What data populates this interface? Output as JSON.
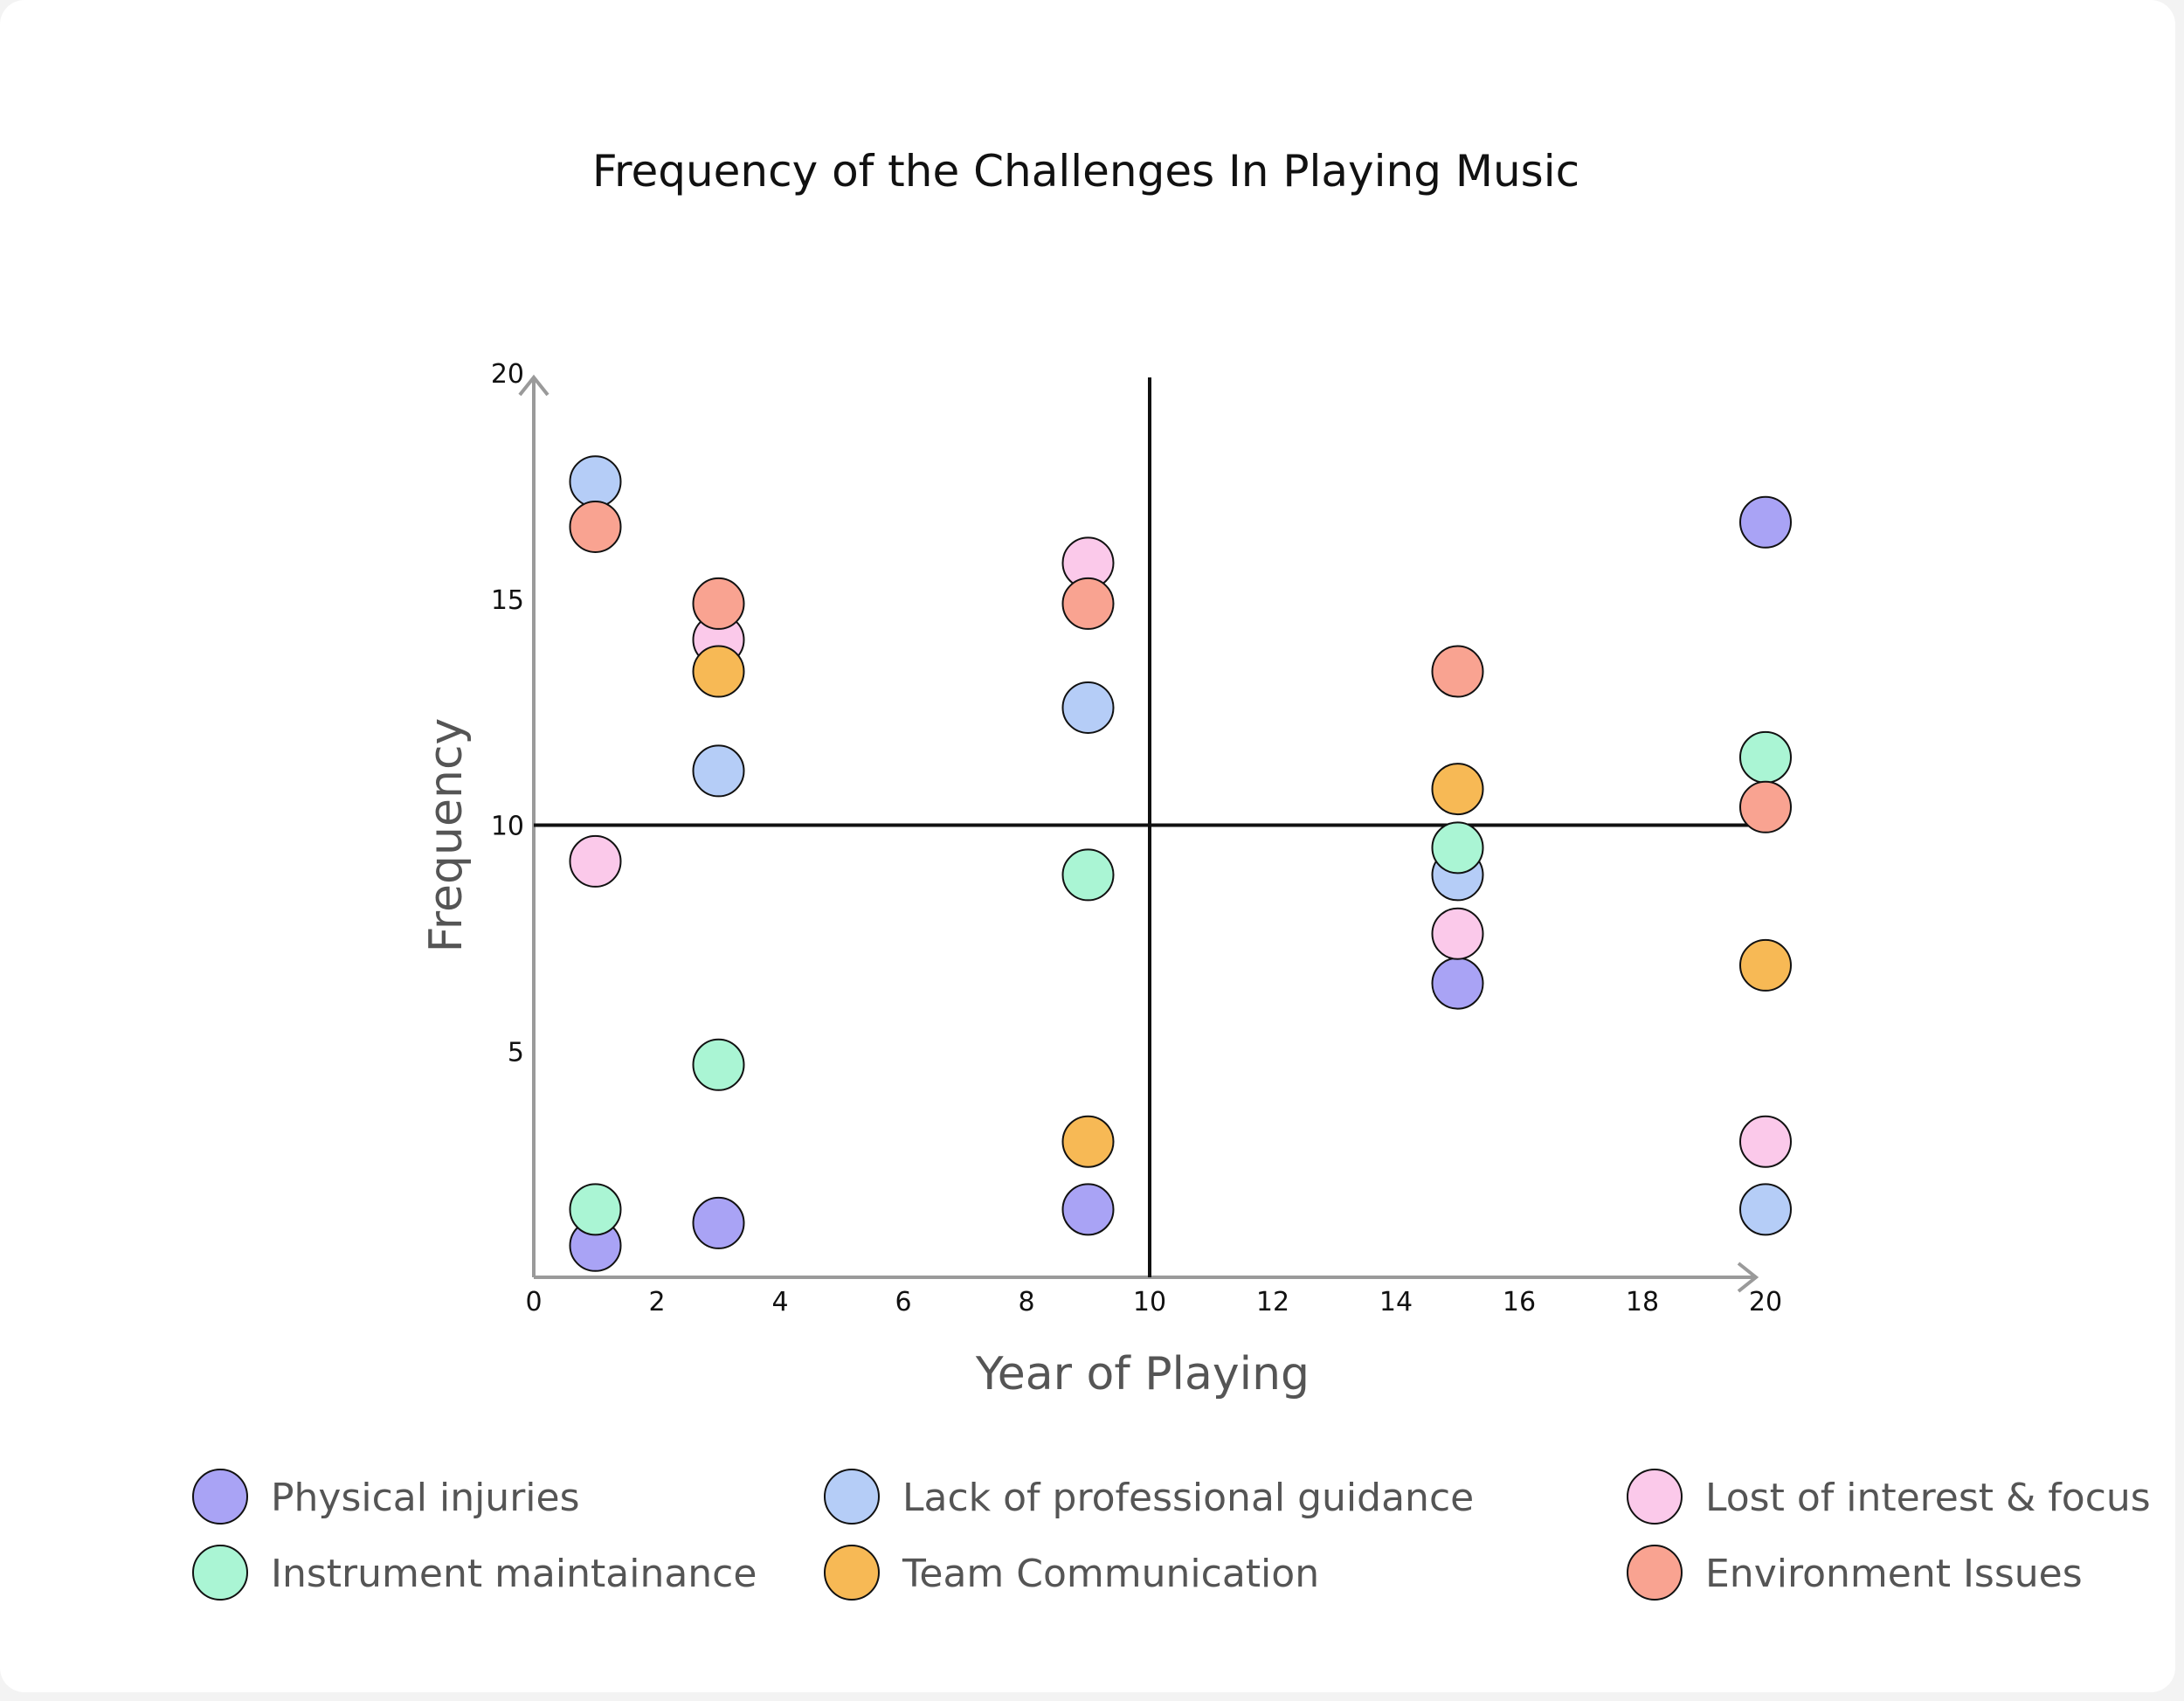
{
  "chart_data": {
    "type": "scatter",
    "title": "Frequency of the Challenges In Playing Music",
    "xlabel": "Year of Playing",
    "ylabel": "Frequency",
    "xlim": [
      0,
      21
    ],
    "ylim": [
      0,
      21
    ],
    "x_ticks": [
      0,
      2,
      4,
      6,
      8,
      10,
      12,
      14,
      16,
      18,
      20
    ],
    "y_ticks": [
      5,
      10,
      15,
      20
    ],
    "reference_lines": {
      "x": 10,
      "y": 10
    },
    "grid": false,
    "legend_position": "bottom",
    "series": [
      {
        "name": "Physical injuries",
        "color": "#a9a3f5",
        "points": [
          [
            1,
            0.7
          ],
          [
            3,
            1.2
          ],
          [
            9,
            1.5
          ],
          [
            15,
            6.5
          ],
          [
            20,
            16.7
          ]
        ]
      },
      {
        "name": "Lack of professional guidance",
        "color": "#b5cdf7",
        "points": [
          [
            1,
            17.6
          ],
          [
            3,
            11.2
          ],
          [
            9,
            12.6
          ],
          [
            15,
            8.9
          ],
          [
            20,
            1.5
          ]
        ]
      },
      {
        "name": "Lost of interest & focus",
        "color": "#fbc9ea",
        "points": [
          [
            1,
            9.2
          ],
          [
            3,
            14.1
          ],
          [
            9,
            15.8
          ],
          [
            15,
            7.6
          ],
          [
            20,
            3
          ]
        ]
      },
      {
        "name": "Instrument maintainance",
        "color": "#aaf5d4",
        "points": [
          [
            1,
            1.5
          ],
          [
            3,
            4.7
          ],
          [
            9,
            8.9
          ],
          [
            15,
            9.5
          ],
          [
            20,
            11.5
          ]
        ]
      },
      {
        "name": "Team Communication",
        "color": "#f7b955",
        "points": [
          [
            3,
            13.4
          ],
          [
            9,
            3
          ],
          [
            15,
            10.8
          ],
          [
            20,
            6.9
          ]
        ]
      },
      {
        "name": "Environment Issues",
        "color": "#f9a391",
        "points": [
          [
            1,
            16.6
          ],
          [
            3,
            14.9
          ],
          [
            9,
            14.9
          ],
          [
            15,
            13.4
          ],
          [
            20,
            10.4
          ]
        ]
      }
    ]
  }
}
